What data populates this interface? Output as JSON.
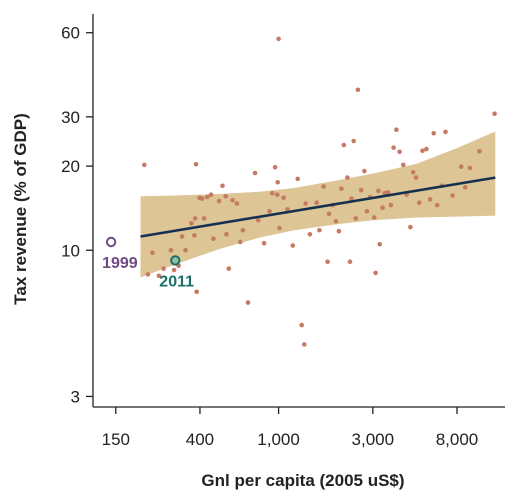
{
  "chart_data": {
    "type": "scatter",
    "xlabel": "Gnl per capita (2005 uS$)",
    "ylabel": "Tax revenue (% of GDP)",
    "x_scale": "log",
    "y_scale": "log",
    "xlim": [
      115,
      14000
    ],
    "ylim": [
      2.75,
      70
    ],
    "x_ticks": [
      {
        "value": 150,
        "label": "150"
      },
      {
        "value": 400,
        "label": "400"
      },
      {
        "value": 1000,
        "label": "1,000"
      },
      {
        "value": 3000,
        "label": "3,000"
      },
      {
        "value": 8000,
        "label": "8,000"
      }
    ],
    "y_ticks": [
      {
        "value": 3,
        "label": "3"
      },
      {
        "value": 10,
        "label": "10"
      },
      {
        "value": 20,
        "label": "20"
      },
      {
        "value": 30,
        "label": "30"
      },
      {
        "value": 60,
        "label": "60"
      }
    ],
    "grid": false,
    "colors": {
      "points": "#c47a63",
      "fit_line": "#15314f",
      "confidence_band": "#ddc596",
      "axis": "#222222",
      "annotation_1999": "#6e4b82",
      "annotation_2011": "#1a6f6a"
    },
    "points": [
      [
        209,
        20.2
      ],
      [
        218,
        8.2
      ],
      [
        230,
        9.8
      ],
      [
        248,
        8.1
      ],
      [
        262,
        8.6
      ],
      [
        285,
        10.0
      ],
      [
        296,
        8.5
      ],
      [
        305,
        9.3
      ],
      [
        312,
        8.8
      ],
      [
        325,
        11.2
      ],
      [
        338,
        10.0
      ],
      [
        362,
        12.5
      ],
      [
        375,
        11.3
      ],
      [
        378,
        13.0
      ],
      [
        382,
        20.3
      ],
      [
        385,
        7.1
      ],
      [
        398,
        15.4
      ],
      [
        410,
        15.3
      ],
      [
        420,
        13.0
      ],
      [
        435,
        15.5
      ],
      [
        455,
        15.8
      ],
      [
        468,
        11.0
      ],
      [
        500,
        15.0
      ],
      [
        520,
        17.0
      ],
      [
        540,
        15.6
      ],
      [
        545,
        11.4
      ],
      [
        560,
        8.6
      ],
      [
        585,
        15.1
      ],
      [
        615,
        14.7
      ],
      [
        640,
        10.7
      ],
      [
        660,
        11.8
      ],
      [
        700,
        6.5
      ],
      [
        760,
        18.9
      ],
      [
        790,
        12.8
      ],
      [
        845,
        10.6
      ],
      [
        900,
        13.8
      ],
      [
        930,
        16.0
      ],
      [
        960,
        19.8
      ],
      [
        985,
        15.8
      ],
      [
        990,
        17.5
      ],
      [
        1000,
        57.0
      ],
      [
        1010,
        12.0
      ],
      [
        1060,
        15.4
      ],
      [
        1110,
        14.0
      ],
      [
        1180,
        10.4
      ],
      [
        1250,
        18.0
      ],
      [
        1310,
        5.4
      ],
      [
        1350,
        4.6
      ],
      [
        1370,
        14.7
      ],
      [
        1440,
        11.4
      ],
      [
        1560,
        14.8
      ],
      [
        1610,
        11.8
      ],
      [
        1690,
        16.9
      ],
      [
        1770,
        9.1
      ],
      [
        1800,
        13.5
      ],
      [
        1880,
        14.5
      ],
      [
        1950,
        12.7
      ],
      [
        2020,
        11.7
      ],
      [
        2080,
        16.6
      ],
      [
        2140,
        23.8
      ],
      [
        2230,
        18.2
      ],
      [
        2300,
        9.1
      ],
      [
        2340,
        15.3
      ],
      [
        2400,
        24.6
      ],
      [
        2460,
        13.0
      ],
      [
        2520,
        37.5
      ],
      [
        2620,
        16.4
      ],
      [
        2720,
        19.2
      ],
      [
        2800,
        13.8
      ],
      [
        2910,
        15.5
      ],
      [
        3050,
        13.1
      ],
      [
        3100,
        8.3
      ],
      [
        3200,
        16.3
      ],
      [
        3250,
        10.5
      ],
      [
        3360,
        14.2
      ],
      [
        3450,
        16.0
      ],
      [
        3580,
        16.1
      ],
      [
        3700,
        14.5
      ],
      [
        3820,
        23.3
      ],
      [
        3950,
        27.0
      ],
      [
        4100,
        22.5
      ],
      [
        4280,
        20.2
      ],
      [
        4450,
        15.8
      ],
      [
        4650,
        12.1
      ],
      [
        4800,
        19.0
      ],
      [
        4960,
        18.2
      ],
      [
        5150,
        14.8
      ],
      [
        5350,
        22.7
      ],
      [
        5600,
        23.0
      ],
      [
        5850,
        15.2
      ],
      [
        6100,
        26.2
      ],
      [
        6350,
        14.5
      ],
      [
        6700,
        17.0
      ],
      [
        7000,
        26.5
      ],
      [
        7600,
        15.7
      ],
      [
        8400,
        19.9
      ],
      [
        8800,
        16.8
      ],
      [
        9300,
        19.7
      ],
      [
        10400,
        22.6
      ],
      [
        12400,
        30.8
      ]
    ],
    "fit_line": [
      [
        200,
        11.2
      ],
      [
        12500,
        18.2
      ]
    ],
    "confidence_band": [
      {
        "x": 200,
        "lower": 8.0,
        "upper": 15.6
      },
      {
        "x": 300,
        "lower": 8.9,
        "upper": 15.7
      },
      {
        "x": 500,
        "lower": 10.1,
        "upper": 15.9
      },
      {
        "x": 800,
        "lower": 11.1,
        "upper": 16.2
      },
      {
        "x": 1200,
        "lower": 11.8,
        "upper": 16.7
      },
      {
        "x": 2000,
        "lower": 12.4,
        "upper": 17.8
      },
      {
        "x": 3000,
        "lower": 12.8,
        "upper": 18.8
      },
      {
        "x": 5000,
        "lower": 13.1,
        "upper": 20.4
      },
      {
        "x": 8000,
        "lower": 13.2,
        "upper": 23.2
      },
      {
        "x": 12500,
        "lower": 13.3,
        "upper": 26.6
      }
    ],
    "annotations": [
      {
        "label": "1999",
        "x": 142,
        "y": 10.7,
        "label_color": "#6e4b82"
      },
      {
        "label": "2011",
        "x": 300,
        "y": 9.2,
        "label_color": "#1a6f6a"
      }
    ]
  }
}
